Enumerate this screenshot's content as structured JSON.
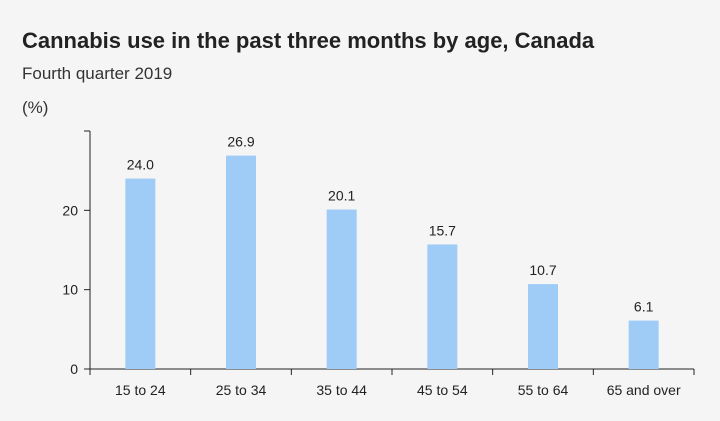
{
  "chart_data": {
    "type": "bar",
    "title": "Cannabis use in the past three months by age, Canada",
    "subtitle": "Fourth quarter 2019",
    "ylabel": "(%)",
    "xlabel": "",
    "categories": [
      "15 to 24",
      "25 to 34",
      "35 to 44",
      "45 to 54",
      "55 to 64",
      "65 and over"
    ],
    "values": [
      24.0,
      26.9,
      20.1,
      15.7,
      10.7,
      6.1
    ],
    "value_labels": [
      "24.0",
      "26.9",
      "20.1",
      "15.7",
      "10.7",
      "6.1"
    ],
    "ylim": [
      0,
      30
    ],
    "yticks": [
      0,
      10,
      20
    ],
    "grid": false,
    "bar_color": "#9fcbf7"
  }
}
